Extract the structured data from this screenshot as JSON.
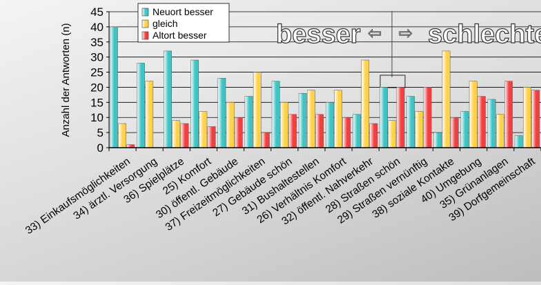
{
  "chart_data": {
    "type": "bar",
    "ylabel": "Anzahl der Antworten (n)",
    "ylim": [
      0,
      45
    ],
    "yticks": [
      0,
      5,
      10,
      15,
      20,
      25,
      30,
      35,
      40,
      45
    ],
    "grid": true,
    "legend_position": "top-left",
    "annotations": {
      "left": "besser",
      "right": "schlechter",
      "arrow_left": "⇦",
      "arrow_right": "⇨"
    },
    "categories": [
      "33) Einkaufsmöglichkeiten",
      "34) ärztl. Versorgung",
      "36) Spielplätze",
      "25) Komfort",
      "30) öffentl. Gebäude",
      "37) Freizeitmöglichkeiten",
      "27) Gebäude schön",
      "31) Bushaltestellen",
      "26) Verhältnis Komfort",
      "32) öffentl. Nahverkehr",
      "28) Straßen schön",
      "29) Straßen vernünftig",
      "38) soziale Kontakte",
      "40) Umgebung",
      "35) Grünanlagen",
      "39) Dorfgemeinschaft"
    ],
    "series": [
      {
        "name": "Neuort besser",
        "color": "#3fc4c4",
        "values": [
          40,
          28,
          32,
          29,
          23,
          17,
          22,
          18,
          15,
          11,
          20,
          17,
          5,
          12,
          16,
          4
        ]
      },
      {
        "name": "gleich",
        "color": "#ffd24a",
        "values": [
          8,
          22,
          9,
          12,
          15,
          25,
          15,
          19,
          19,
          29,
          9,
          12,
          32,
          22,
          11,
          20
        ]
      },
      {
        "name": "Altort besser",
        "color": "#f24040",
        "values": [
          1,
          0,
          8,
          7,
          10,
          5,
          11,
          11,
          10,
          8,
          20,
          20,
          10,
          17,
          22,
          19
        ]
      }
    ]
  }
}
